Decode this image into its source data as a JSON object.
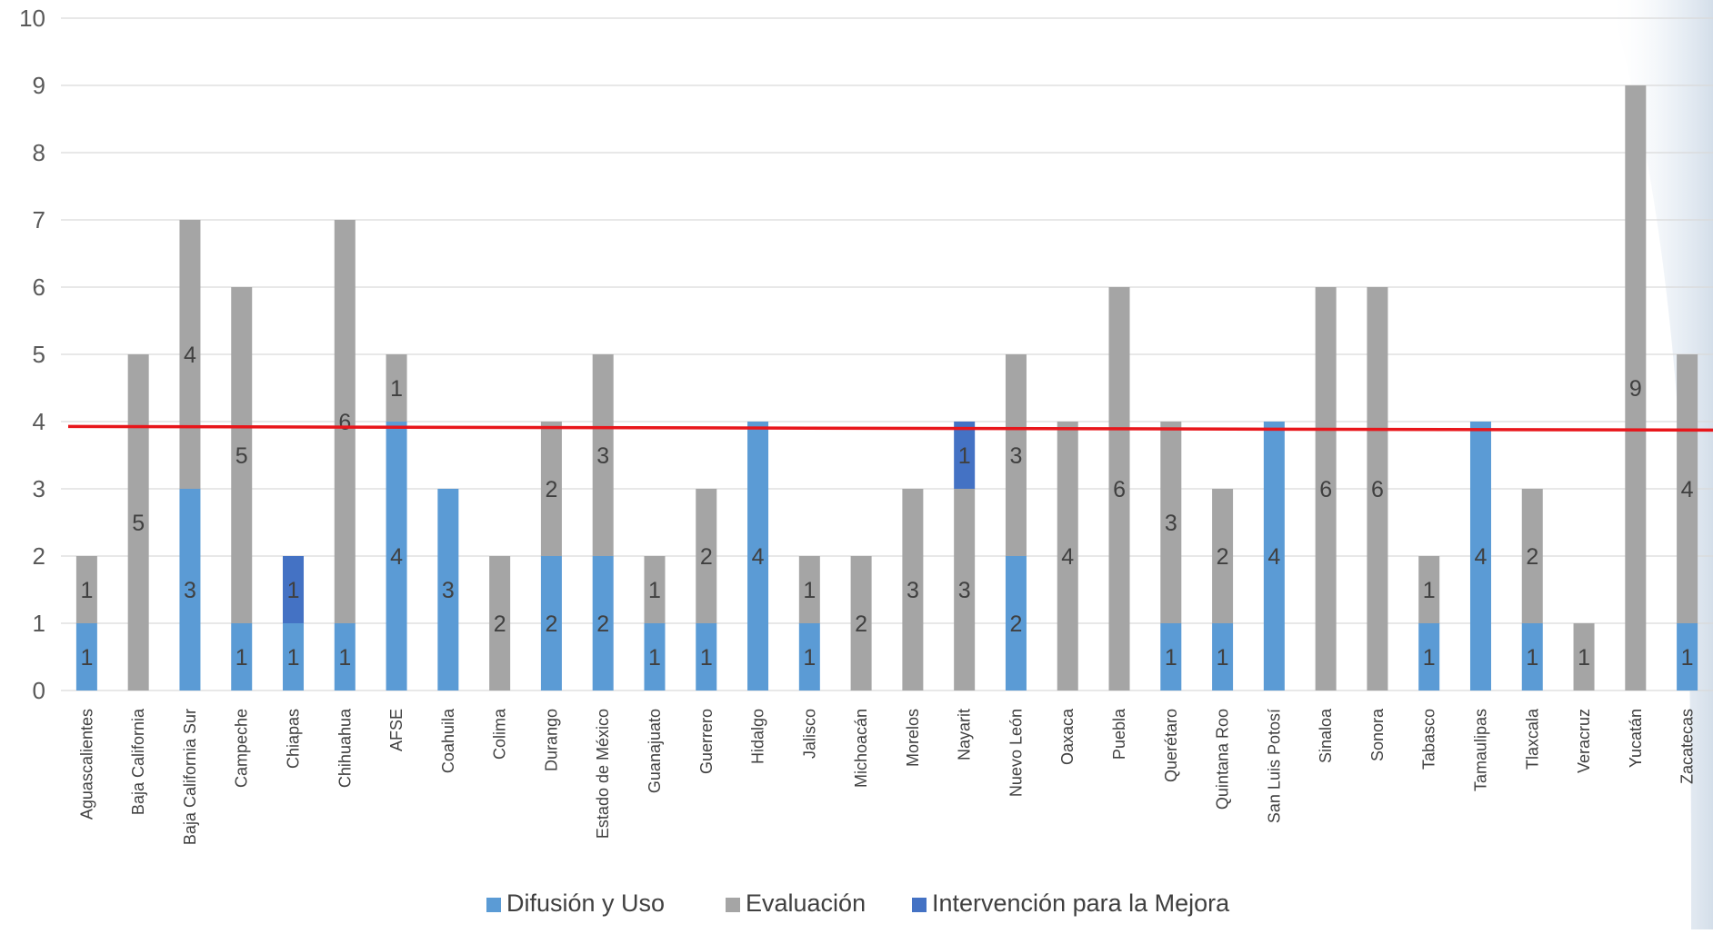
{
  "chart_data": {
    "type": "bar",
    "stacked": true,
    "title": "",
    "xlabel": "",
    "ylabel": "",
    "ylim": [
      0,
      10
    ],
    "yticks": [
      "0",
      "1",
      "2",
      "3",
      "4",
      "5",
      "6",
      "7",
      "8",
      "9",
      "10"
    ],
    "grid": true,
    "legend_position": "bottom",
    "reference_line": {
      "value": 3.9,
      "color": "#e8161b"
    },
    "categories": [
      "Aguascalientes",
      "Baja California",
      "Baja California Sur",
      "Campeche",
      "Chiapas",
      "Chihuahua",
      "AFSE",
      "Coahuila",
      "Colima",
      "Durango",
      "Estado de México",
      "Guanajuato",
      "Guerrero",
      "Hidalgo",
      "Jalisco",
      "Michoacán",
      "Morelos",
      "Nayarit",
      "Nuevo León",
      "Oaxaca",
      "Puebla",
      "Querétaro",
      "Quintana Roo",
      "San Luis Potosí",
      "Sinaloa",
      "Sonora",
      "Tabasco",
      "Tamaulipas",
      "Tlaxcala",
      "Veracruz",
      "Yucatán",
      "Zacatecas"
    ],
    "series": [
      {
        "name": "Difusión y Uso",
        "color": "#5b9bd5",
        "values": [
          1,
          0,
          3,
          1,
          1,
          1,
          4,
          3,
          0,
          2,
          2,
          1,
          1,
          4,
          1,
          0,
          0,
          0,
          2,
          0,
          0,
          1,
          1,
          4,
          0,
          0,
          1,
          4,
          1,
          0,
          0,
          1
        ]
      },
      {
        "name": "Evaluación",
        "color": "#a5a5a5",
        "values": [
          1,
          5,
          4,
          5,
          0,
          6,
          1,
          0,
          2,
          2,
          3,
          1,
          2,
          0,
          1,
          2,
          3,
          3,
          3,
          4,
          6,
          3,
          2,
          0,
          6,
          6,
          1,
          0,
          2,
          1,
          9,
          4
        ]
      },
      {
        "name": "Intervención para la Mejora",
        "color": "#4472c4",
        "values": [
          0,
          0,
          0,
          0,
          1,
          0,
          0,
          0,
          0,
          0,
          0,
          0,
          0,
          0,
          0,
          0,
          0,
          1,
          0,
          0,
          0,
          0,
          0,
          0,
          0,
          0,
          0,
          0,
          0,
          0,
          0,
          0
        ]
      }
    ]
  }
}
